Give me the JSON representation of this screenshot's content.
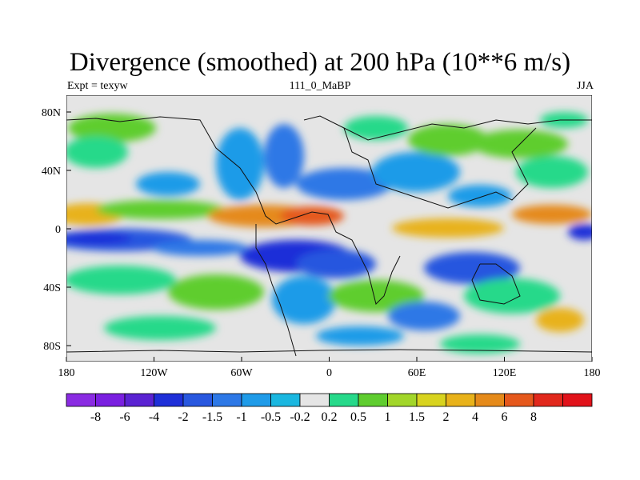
{
  "title": "Divergence (smoothed) at 200 hPa (10**6 m/s)",
  "subtitle_left": "Expt = texyw",
  "subtitle_center": "111_0_MaBP",
  "subtitle_right": "JJA",
  "lon_ticks": [
    "180",
    "120W",
    "60W",
    "0",
    "60E",
    "120E",
    "180"
  ],
  "lat_ticks": [
    "80N",
    "40N",
    "0",
    "40S",
    "80S"
  ],
  "colorbar": {
    "colors": [
      "#8a2be2",
      "#7a1fe0",
      "#5a22d2",
      "#1e2fd8",
      "#2857df",
      "#2d78e6",
      "#1f9be8",
      "#1ab7e0",
      "#e5e5e5",
      "#26d98a",
      "#5fcd2f",
      "#a2d629",
      "#d8d31e",
      "#e8b21a",
      "#e58a1a",
      "#e5581c",
      "#e1281c",
      "#e1121a"
    ],
    "labels": [
      "-8",
      "-6",
      "-4",
      "-2",
      "-1.5",
      "-1",
      "-0.5",
      "-0.2",
      "0.2",
      "0.5",
      "1",
      "1.5",
      "2",
      "4",
      "6",
      "8"
    ]
  }
}
